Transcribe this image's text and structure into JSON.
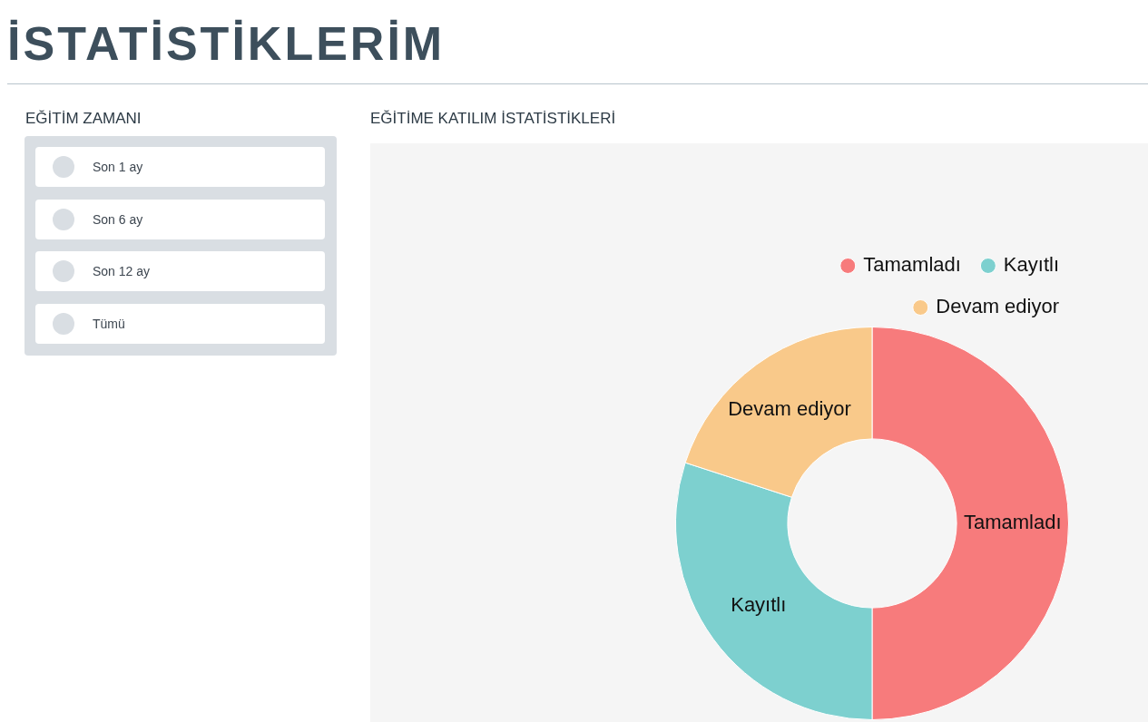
{
  "chart_data": [
    {
      "type": "other",
      "title": "İSTATİSTİKLERİM",
      "subtitle": "EĞİTİM ZAMANI",
      "annotations": [
        "Son 1 ay",
        "Son 6 ay",
        "Son 12 ay",
        "Tümü"
      ]
    },
    {
      "type": "donut",
      "title": "EĞİTİME KATILIM İSTATİSTİKLERİ",
      "categories": [
        "Tamamladı",
        "Kayıtlı",
        "Devam ediyor"
      ],
      "values": [
        50,
        30,
        20
      ],
      "colors": [
        "#f77b7c",
        "#7dd0cf",
        "#f9c98a"
      ],
      "legend": "top right"
    }
  ]
}
